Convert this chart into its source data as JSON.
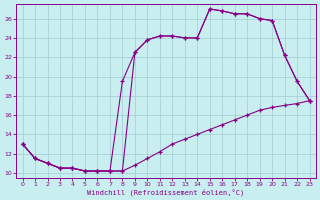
{
  "xlabel": "Windchill (Refroidissement éolien,°C)",
  "background_color": "#c8eef0",
  "line_color": "#880088",
  "grid_color": "#a0ccd0",
  "xmin": -0.5,
  "xmax": 23.5,
  "ymin": 9.5,
  "ymax": 27.5,
  "yticks": [
    10,
    12,
    14,
    16,
    18,
    20,
    22,
    24,
    26
  ],
  "xticks": [
    0,
    1,
    2,
    3,
    4,
    5,
    6,
    7,
    8,
    9,
    10,
    11,
    12,
    13,
    14,
    15,
    16,
    17,
    18,
    19,
    20,
    21,
    22,
    23
  ],
  "line1_x": [
    0,
    1,
    2,
    3,
    4,
    5,
    6,
    7,
    8,
    9,
    10,
    11,
    12,
    13,
    14,
    15,
    16,
    17,
    18,
    19,
    20,
    21,
    22,
    23
  ],
  "line1_y": [
    13.0,
    11.5,
    11.0,
    10.5,
    10.5,
    10.2,
    10.2,
    10.2,
    10.2,
    10.8,
    11.5,
    12.2,
    13.0,
    13.5,
    14.0,
    14.5,
    15.0,
    15.5,
    16.0,
    16.5,
    16.8,
    17.0,
    17.2,
    17.5
  ],
  "line2_x": [
    0,
    1,
    2,
    3,
    4,
    5,
    6,
    7,
    8,
    9,
    10,
    11,
    12,
    13,
    14,
    15,
    16,
    17,
    18,
    19,
    20,
    21,
    22,
    23
  ],
  "line2_y": [
    13.0,
    11.5,
    11.0,
    10.5,
    10.5,
    10.2,
    10.2,
    10.2,
    10.2,
    22.5,
    23.8,
    24.2,
    24.2,
    24.0,
    24.0,
    27.0,
    26.8,
    26.5,
    26.5,
    26.0,
    25.8,
    22.2,
    19.5,
    17.5
  ],
  "line3_x": [
    0,
    1,
    2,
    3,
    4,
    5,
    6,
    7,
    8,
    9,
    10,
    11,
    12,
    13,
    14,
    15,
    16,
    17,
    18,
    19,
    20,
    21,
    22,
    23
  ],
  "line3_y": [
    13.0,
    11.5,
    11.0,
    10.5,
    10.5,
    10.2,
    10.2,
    10.2,
    19.5,
    22.5,
    23.8,
    24.2,
    24.2,
    24.0,
    24.0,
    27.0,
    26.8,
    26.5,
    26.5,
    26.0,
    25.8,
    22.2,
    19.5,
    17.5
  ]
}
